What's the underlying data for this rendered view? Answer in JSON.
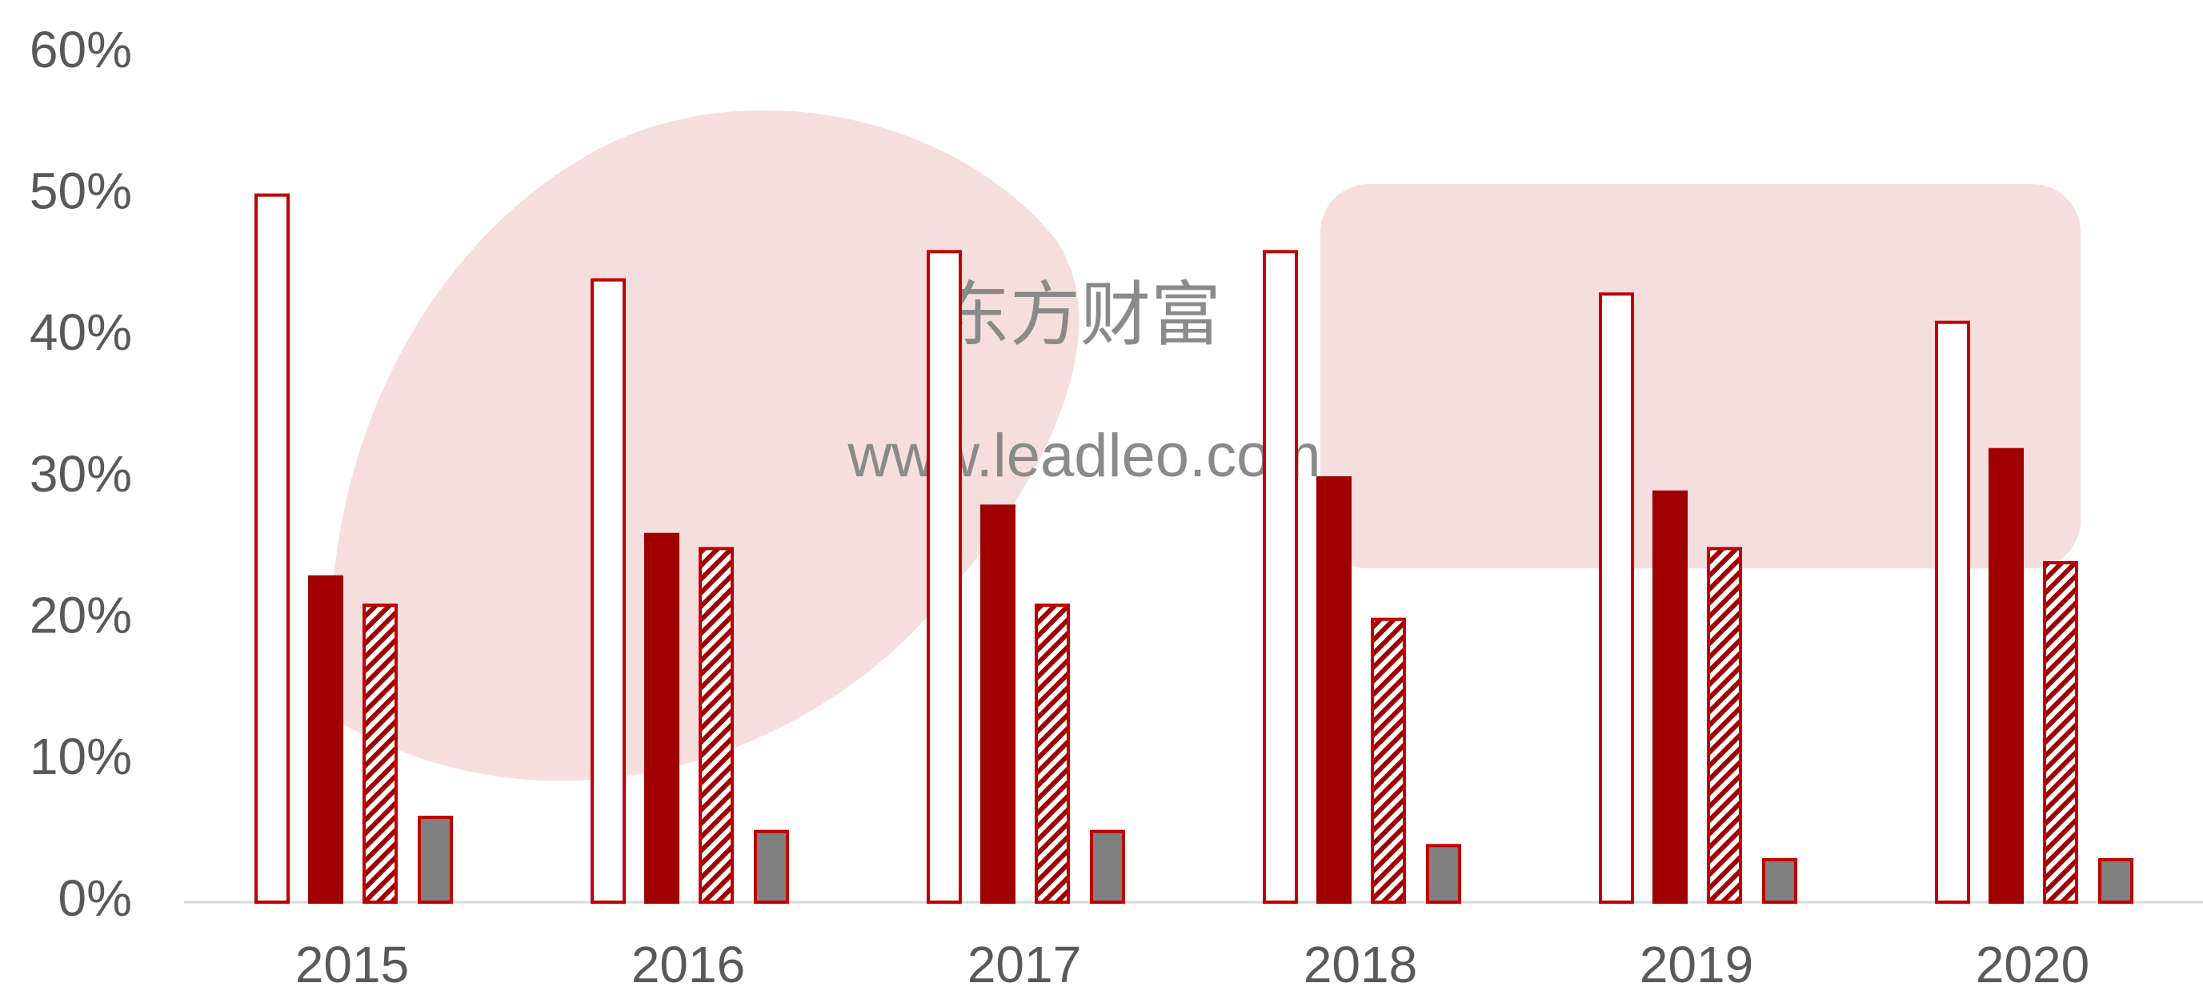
{
  "chart_data": {
    "type": "bar",
    "categories": [
      "2015",
      "2016",
      "2017",
      "2018",
      "2019",
      "2020"
    ],
    "series": [
      {
        "color": "#c00000",
        "fill": "white",
        "values": [
          50,
          44,
          46,
          46,
          43,
          41
        ]
      },
      {
        "color": "#a00000",
        "fill": "solid",
        "values": [
          23,
          26,
          28,
          30,
          29,
          32
        ]
      },
      {
        "color": "#c00000",
        "fill": "hatch",
        "values": [
          21,
          25,
          21,
          20,
          25,
          24
        ]
      },
      {
        "color": "#c00000",
        "fill": "#808080",
        "values": [
          6,
          5,
          5,
          4,
          3,
          3
        ]
      }
    ],
    "ylim": [
      0,
      60
    ],
    "yticks": [
      {
        "value": 0,
        "label": "0%"
      },
      {
        "value": 10,
        "label": "10%"
      },
      {
        "value": 20,
        "label": "20%"
      },
      {
        "value": 30,
        "label": "30%"
      },
      {
        "value": 40,
        "label": "40%"
      },
      {
        "value": 50,
        "label": "50%"
      },
      {
        "value": 60,
        "label": "60%"
      }
    ],
    "grid": false
  },
  "watermark": [
    "东方财富",
    "www.leadleo.com"
  ]
}
